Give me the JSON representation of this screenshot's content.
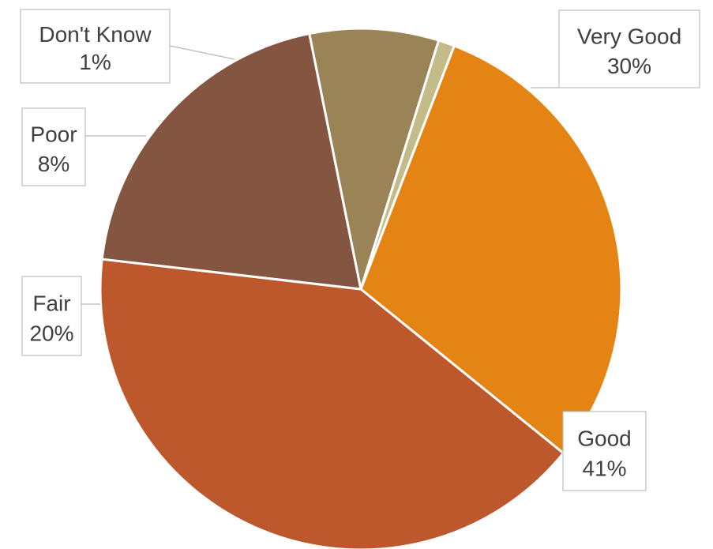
{
  "chart_data": {
    "type": "pie",
    "title": "",
    "slices": [
      {
        "label": "Very Good",
        "value": 30,
        "value_label": "30%",
        "color": "#e38414"
      },
      {
        "label": "Good",
        "value": 41,
        "value_label": "41%",
        "color": "#bd582c"
      },
      {
        "label": "Fair",
        "value": 20,
        "value_label": "20%",
        "color": "#845641"
      },
      {
        "label": "Poor",
        "value": 8,
        "value_label": "8%",
        "color": "#9a8357"
      },
      {
        "label": "Don't Know",
        "value": 1,
        "value_label": "1%",
        "color": "#c3bc88"
      }
    ],
    "legend": "none",
    "data_labels": "outside callouts with category name and percentage"
  }
}
